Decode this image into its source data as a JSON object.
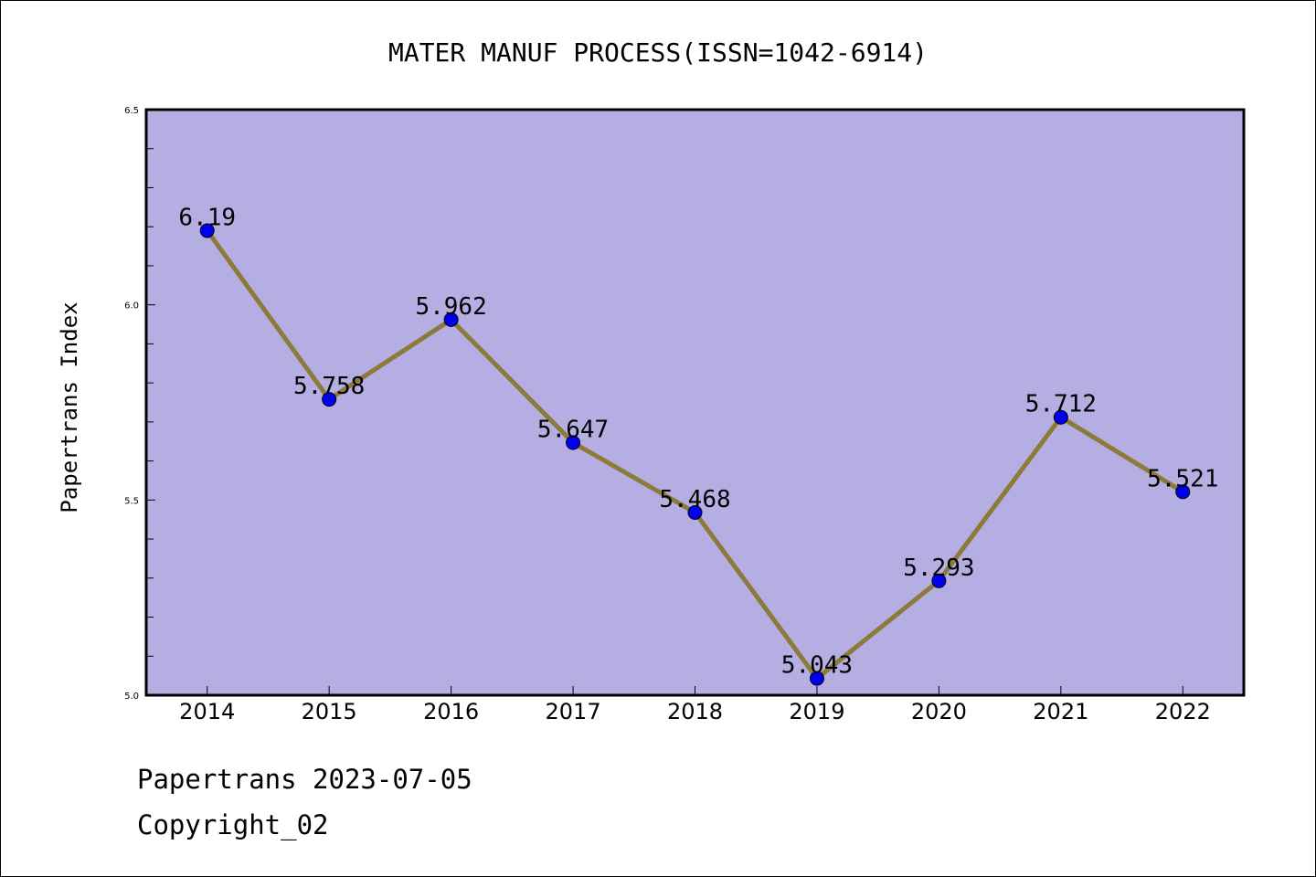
{
  "chart_data": {
    "type": "line",
    "title": "MATER MANUF PROCESS(ISSN=1042-6914)",
    "xlabel": "",
    "ylabel": "Papertrans Index",
    "categories": [
      "2014",
      "2015",
      "2016",
      "2017",
      "2018",
      "2019",
      "2020",
      "2021",
      "2022"
    ],
    "values": [
      6.19,
      5.758,
      5.962,
      5.647,
      5.468,
      5.043,
      5.293,
      5.712,
      5.521
    ],
    "value_labels": [
      "6.19",
      "5.758",
      "5.962",
      "5.647",
      "5.468",
      "5.043",
      "5.293",
      "5.712",
      "5.521"
    ],
    "ylim": [
      5.0,
      6.5
    ],
    "yticks": [
      "5.0",
      "5.5",
      "6.0",
      "6.5"
    ],
    "grid": false,
    "colors": {
      "plot_background": "#b5aee2",
      "line": "#8b7a3a",
      "marker": "#0000ee",
      "marker_edge": "#000000"
    }
  },
  "footer": {
    "line1": "Papertrans 2023-07-05",
    "line2": "Copyright_02"
  }
}
